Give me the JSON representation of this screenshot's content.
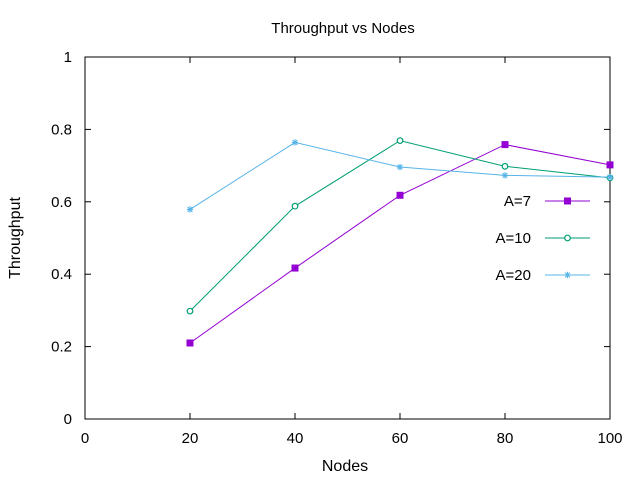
{
  "chart_data": {
    "type": "line",
    "title": "Throughput vs Nodes",
    "xlabel": "Nodes",
    "ylabel": "Throughput",
    "xlim": [
      0,
      100
    ],
    "ylim": [
      0,
      1
    ],
    "x_ticks": [
      0,
      20,
      40,
      60,
      80,
      100
    ],
    "y_ticks": [
      0,
      0.2,
      0.4,
      0.6,
      0.8,
      1
    ],
    "x_tick_labels": [
      "0",
      "20",
      "40",
      "60",
      "80",
      "100"
    ],
    "y_tick_labels": [
      "0",
      "0.2",
      "0.4",
      "0.6",
      "0.8",
      "1"
    ],
    "grid": false,
    "legend_position": "right",
    "series": [
      {
        "name": "A=7",
        "color": "#9400d3",
        "marker": "filled-square",
        "x": [
          20,
          40,
          60,
          80,
          100
        ],
        "y": [
          0.21,
          0.417,
          0.618,
          0.758,
          0.702
        ]
      },
      {
        "name": "A=10",
        "color": "#009e73",
        "marker": "open-circle",
        "x": [
          20,
          40,
          60,
          80,
          100
        ],
        "y": [
          0.298,
          0.588,
          0.769,
          0.698,
          0.666
        ]
      },
      {
        "name": "A=20",
        "color": "#56b4e9",
        "marker": "star",
        "x": [
          20,
          40,
          60,
          80,
          100
        ],
        "y": [
          0.579,
          0.764,
          0.696,
          0.673,
          0.668
        ]
      }
    ]
  }
}
